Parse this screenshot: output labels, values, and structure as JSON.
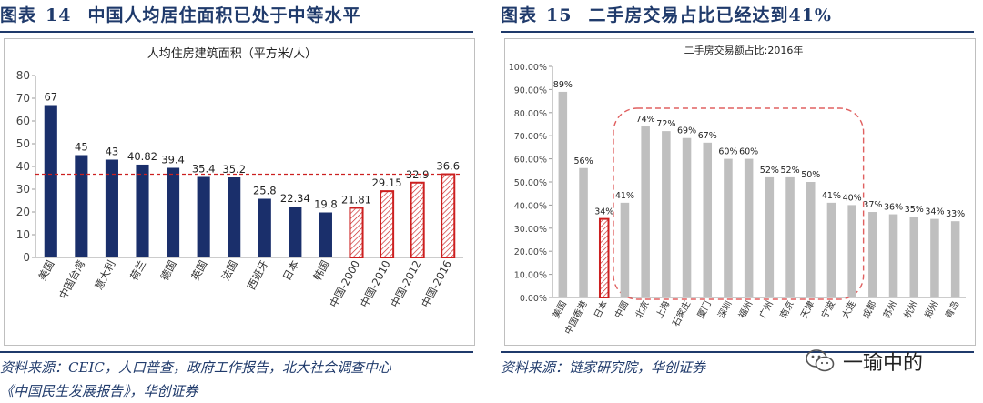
{
  "left": {
    "fig_label": "图表",
    "fig_number": "14",
    "fig_title": "中国人均居住面积已处于中等水平",
    "source_line1": "资料来源：CEIC，人口普查，政府工作报告，北大社会调查中心",
    "source_line2": "《中国民生发展报告》，华创证券"
  },
  "right": {
    "fig_label": "图表",
    "fig_number": "15",
    "fig_title": "二手房交易占比已经达到41%",
    "source_line1": "资料来源：链家研究院，华创证券"
  },
  "watermark": {
    "text": "一瑜中的",
    "icon": "wechat-icon"
  },
  "colors": {
    "navy": "#1a2f6b",
    "red": "#cc2020",
    "gray": "#bfbfbf",
    "title_blue": "#1f3a6b"
  },
  "chart_data": [
    {
      "type": "bar",
      "title": "人均住房建筑面积（平方米/人）",
      "categories": [
        "美国",
        "中国台湾",
        "意大利",
        "荷兰",
        "德国",
        "英国",
        "法国",
        "西班牙",
        "日本",
        "韩国",
        "中国-2000",
        "中国-2010",
        "中国-2012",
        "中国-2016"
      ],
      "values": [
        67,
        45,
        43,
        40.82,
        39.4,
        35.4,
        35.2,
        25.8,
        22.34,
        19.8,
        21.81,
        29.15,
        32.9,
        36.6
      ],
      "value_labels": [
        "67",
        "45",
        "43",
        "40.82",
        "39.4",
        "35.4",
        "35.2",
        "25.8",
        "22.34",
        "19.8",
        "21.81",
        "29.15",
        "32.9",
        "36.6"
      ],
      "highlight_categories": [
        "中国-2000",
        "中国-2010",
        "中国-2012",
        "中国-2016"
      ],
      "reference_line": 36.6,
      "ylim": [
        0,
        80
      ],
      "yticks": [
        "0",
        "10",
        "20",
        "30",
        "40",
        "50",
        "60",
        "70",
        "80"
      ],
      "grid": false
    },
    {
      "type": "bar",
      "title": "二手房交易额占比:2016年",
      "categories": [
        "美国",
        "中国香港",
        "日本",
        "中国",
        "北京",
        "上海",
        "石家庄",
        "厦门",
        "深圳",
        "福州",
        "广州",
        "南京",
        "天津",
        "宁波",
        "大连",
        "成都",
        "苏州",
        "杭州",
        "郑州",
        "青岛"
      ],
      "values": [
        89,
        56,
        34,
        41,
        74,
        72,
        69,
        67,
        60,
        60,
        52,
        52,
        50,
        41,
        40,
        37,
        36,
        35,
        34,
        33
      ],
      "value_labels": [
        "89%",
        "56%",
        "34%",
        "41%",
        "74%",
        "72%",
        "69%",
        "67%",
        "60%",
        "60%",
        "52%",
        "52%",
        "50%",
        "41%",
        "40%",
        "37%",
        "36%",
        "35%",
        "34%",
        "33%"
      ],
      "highlight_categories": [
        "日本"
      ],
      "emphasis_region": [
        "中国",
        "大连"
      ],
      "ylim": [
        0,
        100
      ],
      "yticks": [
        "0.00%",
        "10.00%",
        "20.00%",
        "30.00%",
        "40.00%",
        "50.00%",
        "60.00%",
        "70.00%",
        "80.00%",
        "90.00%",
        "100.00%"
      ],
      "grid": false
    }
  ]
}
